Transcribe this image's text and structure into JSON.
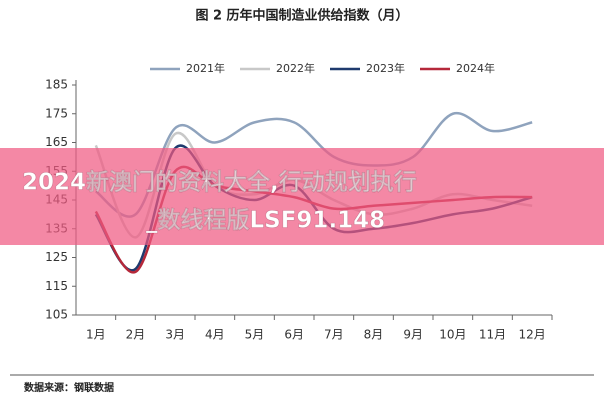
{
  "chart_data": {
    "type": "line",
    "title": "图 2 历年中国制造业供给指数（月）",
    "source": "数据来源：钢联数据",
    "categories": [
      "1月",
      "2月",
      "3月",
      "4月",
      "5月",
      "6月",
      "7月",
      "8月",
      "9月",
      "10月",
      "11月",
      "12月"
    ],
    "series": [
      {
        "name": "2021年",
        "color": "#8fa3bd",
        "values": [
          148,
          140,
          170,
          165,
          172,
          172,
          160,
          157,
          160,
          175,
          169,
          172
        ]
      },
      {
        "name": "2022年",
        "color": "#c8c8c8",
        "values": [
          164,
          132,
          168,
          150,
          147,
          152,
          145,
          140,
          142,
          147,
          145,
          143
        ]
      },
      {
        "name": "2023年",
        "color": "#1f3a6e",
        "values": [
          140,
          121,
          163,
          150,
          145,
          150,
          135,
          135,
          137,
          140,
          142,
          146
        ]
      },
      {
        "name": "2024年",
        "color": "#b5283a",
        "values": [
          141,
          120,
          155,
          150,
          148,
          146,
          142,
          143,
          144,
          145,
          146,
          146
        ]
      }
    ],
    "ylim": [
      105,
      185
    ],
    "yticks": [
      105,
      115,
      125,
      135,
      145,
      155,
      165,
      175,
      185
    ],
    "legend": "top",
    "overlay": {
      "lines": [
        "2024新澳门的资料大全,行动规划执行",
        "_数线程版LSF91.148"
      ]
    }
  }
}
